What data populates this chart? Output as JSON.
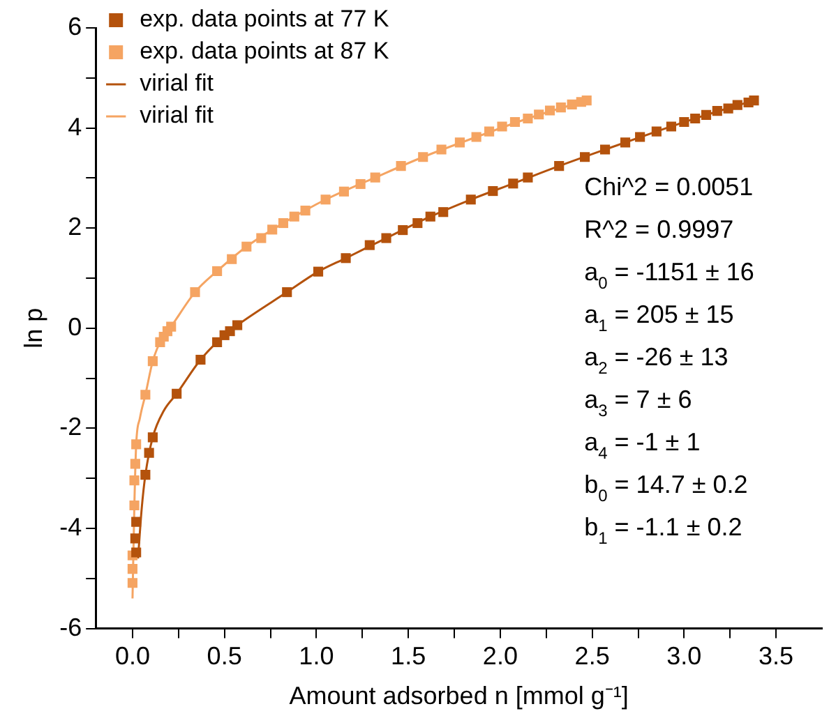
{
  "chart_data": {
    "type": "scatter",
    "xlabel": "Amount adsorbed n [mmol g⁻¹]",
    "ylabel": "ln p",
    "xlim": [
      -0.2,
      3.75
    ],
    "ylim": [
      -6,
      6
    ],
    "xticks": [
      {
        "value": 0,
        "label": "0.0"
      },
      {
        "value": 0.25,
        "label": null
      },
      {
        "value": 0.5,
        "label": "0.5"
      },
      {
        "value": 0.75,
        "label": null
      },
      {
        "value": 1,
        "label": "1.0"
      },
      {
        "value": 1.25,
        "label": null
      },
      {
        "value": 1.5,
        "label": "1.5"
      },
      {
        "value": 1.75,
        "label": null
      },
      {
        "value": 2,
        "label": "2.0"
      },
      {
        "value": 2.25,
        "label": null
      },
      {
        "value": 2.5,
        "label": "2.5"
      },
      {
        "value": 2.75,
        "label": null
      },
      {
        "value": 3,
        "label": "3.0"
      },
      {
        "value": 3.25,
        "label": null
      },
      {
        "value": 3.5,
        "label": "3.5"
      }
    ],
    "yticks": [
      -6,
      {
        "value": -5,
        "label": null
      },
      -4,
      {
        "value": -3,
        "label": null
      },
      -2,
      {
        "value": -1,
        "label": null
      },
      0,
      {
        "value": 1,
        "label": null
      },
      2,
      {
        "value": 3,
        "label": null
      },
      4,
      {
        "value": 5,
        "label": null
      },
      6
    ],
    "grid": false,
    "legend": "top left",
    "marker": "square",
    "series": [
      {
        "name": "exp. data points at 77 K",
        "type": "scatter",
        "color": "#b4520c",
        "x": [
          0.02,
          0.015,
          0.02,
          0.07,
          0.09,
          0.11,
          0.24,
          0.37,
          0.46,
          0.5,
          0.53,
          0.57,
          0.84,
          1.01,
          1.16,
          1.29,
          1.38,
          1.47,
          1.55,
          1.62,
          1.69,
          1.84,
          1.96,
          2.07,
          2.15,
          2.32,
          2.46,
          2.57,
          2.68,
          2.76,
          2.85,
          2.93,
          3.0,
          3.06,
          3.12,
          3.18,
          3.24,
          3.29,
          3.35,
          3.38
        ],
        "values": [
          -4.48,
          -4.2,
          -3.87,
          -2.93,
          -2.49,
          -2.18,
          -1.31,
          -0.63,
          -0.28,
          -0.14,
          -0.06,
          0.06,
          0.72,
          1.13,
          1.4,
          1.66,
          1.8,
          1.96,
          2.1,
          2.23,
          2.32,
          2.57,
          2.74,
          2.89,
          3.01,
          3.24,
          3.42,
          3.57,
          3.71,
          3.82,
          3.93,
          4.03,
          4.12,
          4.19,
          4.26,
          4.34,
          4.39,
          4.46,
          4.51,
          4.55
        ]
      },
      {
        "name": "exp. data points at 87 K",
        "type": "scatter",
        "color": "#f5a462",
        "x": [
          0.0,
          0.0,
          0.0,
          0.01,
          0.01,
          0.015,
          0.02,
          0.07,
          0.11,
          0.15,
          0.17,
          0.19,
          0.21,
          0.34,
          0.46,
          0.54,
          0.62,
          0.7,
          0.76,
          0.82,
          0.88,
          0.94,
          1.05,
          1.15,
          1.24,
          1.32,
          1.46,
          1.58,
          1.68,
          1.78,
          1.87,
          1.94,
          2.01,
          2.08,
          2.15,
          2.21,
          2.27,
          2.33,
          2.39,
          2.44,
          2.47
        ],
        "values": [
          -5.09,
          -4.81,
          -4.54,
          -3.54,
          -3.04,
          -2.71,
          -2.32,
          -1.33,
          -0.66,
          -0.28,
          -0.17,
          -0.06,
          0.03,
          0.72,
          1.14,
          1.38,
          1.63,
          1.8,
          1.97,
          2.1,
          2.23,
          2.35,
          2.57,
          2.73,
          2.88,
          3.01,
          3.24,
          3.42,
          3.57,
          3.71,
          3.82,
          3.93,
          4.03,
          4.12,
          4.19,
          4.27,
          4.35,
          4.41,
          4.47,
          4.52,
          4.55
        ]
      },
      {
        "name": "virial fit",
        "type": "line",
        "color": "#b4520c",
        "marker": "none",
        "line_style": "solid",
        "x": [
          0.03,
          0.05,
          0.07,
          0.11,
          0.17,
          0.24,
          0.37,
          0.5,
          0.57,
          0.84,
          1.01,
          1.16,
          1.38,
          1.62,
          1.84,
          2.07,
          2.32,
          2.57,
          2.85,
          3.12,
          3.38
        ],
        "values": [
          -4.6,
          -3.6,
          -2.93,
          -2.18,
          -1.65,
          -1.31,
          -0.63,
          -0.14,
          0.06,
          0.72,
          1.13,
          1.4,
          1.8,
          2.23,
          2.57,
          2.89,
          3.24,
          3.57,
          3.93,
          4.26,
          4.55
        ]
      },
      {
        "name": "virial fit",
        "type": "line",
        "color": "#f5a462",
        "marker": "none",
        "line_style": "solid",
        "x": [
          0.0,
          0.01,
          0.02,
          0.04,
          0.07,
          0.11,
          0.15,
          0.21,
          0.34,
          0.46,
          0.62,
          0.82,
          1.05,
          1.32,
          1.58,
          1.87,
          2.15,
          2.47
        ],
        "values": [
          -5.4,
          -3.54,
          -2.32,
          -1.8,
          -1.33,
          -0.66,
          -0.28,
          0.03,
          0.72,
          1.14,
          1.63,
          2.1,
          2.57,
          3.01,
          3.42,
          3.82,
          4.19,
          4.55
        ]
      }
    ],
    "annotations": [
      "Chi^2 = 0.0051",
      "R^2 = 0.9997",
      "a$_{0}$ = -1151 ± 16",
      "a$_{1}$ = 205 ± 15",
      "a$_{2}$ = -26 ± 13",
      "a$_{3}$ = 7 ± 6",
      "a$_{4}$ = -1 ± 1",
      "b$_{0}$ = 14.7 ± 0.2",
      "b$_{1}$ = -1.1 ± 0.2"
    ]
  }
}
